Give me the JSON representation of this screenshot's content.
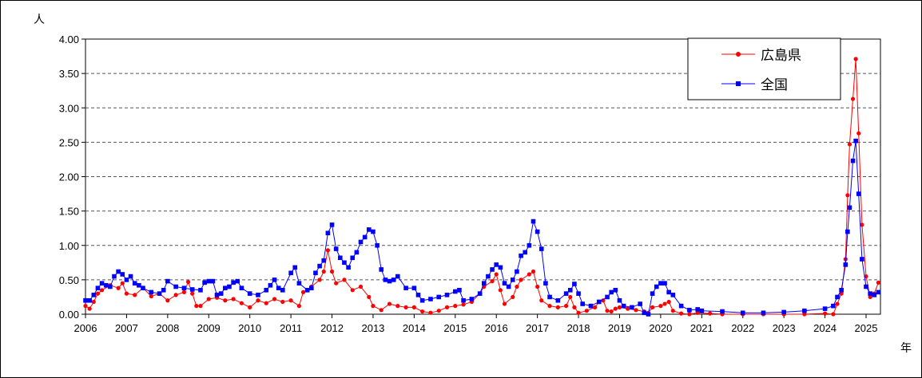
{
  "chart_data": {
    "type": "line",
    "y_unit_label": "人",
    "x_unit_label": "年",
    "ylim": [
      0,
      4
    ],
    "y_ticks": [
      "0.00",
      "0.50",
      "1.00",
      "1.50",
      "2.00",
      "2.50",
      "3.00",
      "3.50",
      "4.00"
    ],
    "x_ticks": [
      "2006",
      "2007",
      "2008",
      "2009",
      "2010",
      "2011",
      "2012",
      "2013",
      "2014",
      "2015",
      "2016",
      "2017",
      "2018",
      "2019",
      "2020",
      "2021",
      "2022",
      "2023",
      "2024",
      "2025"
    ],
    "x_range_years": [
      2006,
      2025.35
    ],
    "grid": "horizontal dashed",
    "legend_position": "top-right",
    "series": [
      {
        "name": "広島県",
        "color": "#ff0000",
        "marker": "circle",
        "points": [
          [
            2006.0,
            0.12
          ],
          [
            2006.1,
            0.08
          ],
          [
            2006.2,
            0.18
          ],
          [
            2006.3,
            0.3
          ],
          [
            2006.4,
            0.35
          ],
          [
            2006.6,
            0.42
          ],
          [
            2006.8,
            0.38
          ],
          [
            2006.9,
            0.45
          ],
          [
            2007.0,
            0.3
          ],
          [
            2007.2,
            0.28
          ],
          [
            2007.4,
            0.38
          ],
          [
            2007.6,
            0.26
          ],
          [
            2007.8,
            0.3
          ],
          [
            2008.0,
            0.2
          ],
          [
            2008.2,
            0.28
          ],
          [
            2008.4,
            0.32
          ],
          [
            2008.5,
            0.47
          ],
          [
            2008.6,
            0.3
          ],
          [
            2008.7,
            0.12
          ],
          [
            2008.8,
            0.12
          ],
          [
            2009.0,
            0.22
          ],
          [
            2009.2,
            0.24
          ],
          [
            2009.4,
            0.2
          ],
          [
            2009.6,
            0.22
          ],
          [
            2009.8,
            0.16
          ],
          [
            2010.0,
            0.1
          ],
          [
            2010.2,
            0.2
          ],
          [
            2010.4,
            0.16
          ],
          [
            2010.6,
            0.22
          ],
          [
            2010.8,
            0.18
          ],
          [
            2011.0,
            0.2
          ],
          [
            2011.2,
            0.12
          ],
          [
            2011.3,
            0.32
          ],
          [
            2011.5,
            0.4
          ],
          [
            2011.7,
            0.5
          ],
          [
            2011.8,
            0.62
          ],
          [
            2011.9,
            0.93
          ],
          [
            2012.0,
            0.62
          ],
          [
            2012.1,
            0.45
          ],
          [
            2012.3,
            0.5
          ],
          [
            2012.5,
            0.35
          ],
          [
            2012.7,
            0.4
          ],
          [
            2012.9,
            0.25
          ],
          [
            2013.0,
            0.12
          ],
          [
            2013.2,
            0.06
          ],
          [
            2013.4,
            0.15
          ],
          [
            2013.6,
            0.12
          ],
          [
            2013.8,
            0.1
          ],
          [
            2014.0,
            0.1
          ],
          [
            2014.2,
            0.04
          ],
          [
            2014.4,
            0.02
          ],
          [
            2014.6,
            0.05
          ],
          [
            2014.8,
            0.1
          ],
          [
            2015.0,
            0.12
          ],
          [
            2015.2,
            0.14
          ],
          [
            2015.4,
            0.18
          ],
          [
            2015.6,
            0.3
          ],
          [
            2015.7,
            0.4
          ],
          [
            2015.9,
            0.48
          ],
          [
            2016.0,
            0.58
          ],
          [
            2016.1,
            0.35
          ],
          [
            2016.2,
            0.15
          ],
          [
            2016.4,
            0.25
          ],
          [
            2016.5,
            0.4
          ],
          [
            2016.6,
            0.5
          ],
          [
            2016.8,
            0.58
          ],
          [
            2016.9,
            0.62
          ],
          [
            2017.0,
            0.4
          ],
          [
            2017.1,
            0.2
          ],
          [
            2017.3,
            0.12
          ],
          [
            2017.5,
            0.1
          ],
          [
            2017.7,
            0.12
          ],
          [
            2017.8,
            0.25
          ],
          [
            2017.9,
            0.1
          ],
          [
            2018.0,
            0.02
          ],
          [
            2018.2,
            0.05
          ],
          [
            2018.4,
            0.1
          ],
          [
            2018.5,
            0.18
          ],
          [
            2018.6,
            0.2
          ],
          [
            2018.7,
            0.05
          ],
          [
            2018.8,
            0.04
          ],
          [
            2018.9,
            0.08
          ],
          [
            2019.0,
            0.1
          ],
          [
            2019.2,
            0.08
          ],
          [
            2019.4,
            0.06
          ],
          [
            2019.6,
            0.04
          ],
          [
            2019.7,
            0.02
          ],
          [
            2019.8,
            0.1
          ],
          [
            2020.0,
            0.12
          ],
          [
            2020.1,
            0.15
          ],
          [
            2020.2,
            0.18
          ],
          [
            2020.3,
            0.05
          ],
          [
            2020.5,
            0.01
          ],
          [
            2020.7,
            0.0
          ],
          [
            2020.9,
            0.02
          ],
          [
            2021.2,
            0.01
          ],
          [
            2021.5,
            0.0
          ],
          [
            2022.0,
            0.0
          ],
          [
            2022.5,
            0.0
          ],
          [
            2023.0,
            0.0
          ],
          [
            2023.5,
            0.0
          ],
          [
            2024.0,
            0.01
          ],
          [
            2024.2,
            0.0
          ],
          [
            2024.3,
            0.15
          ],
          [
            2024.4,
            0.3
          ],
          [
            2024.5,
            0.8
          ],
          [
            2024.55,
            1.73
          ],
          [
            2024.6,
            2.47
          ],
          [
            2024.68,
            3.13
          ],
          [
            2024.75,
            3.71
          ],
          [
            2024.82,
            2.63
          ],
          [
            2024.9,
            1.3
          ],
          [
            2025.0,
            0.55
          ],
          [
            2025.1,
            0.25
          ],
          [
            2025.2,
            0.3
          ],
          [
            2025.3,
            0.46
          ]
        ]
      },
      {
        "name": "全国",
        "color": "#0000ff",
        "marker": "square",
        "points": [
          [
            2006.0,
            0.2
          ],
          [
            2006.1,
            0.2
          ],
          [
            2006.2,
            0.28
          ],
          [
            2006.3,
            0.38
          ],
          [
            2006.4,
            0.45
          ],
          [
            2006.5,
            0.42
          ],
          [
            2006.6,
            0.4
          ],
          [
            2006.7,
            0.55
          ],
          [
            2006.8,
            0.62
          ],
          [
            2006.9,
            0.58
          ],
          [
            2007.0,
            0.5
          ],
          [
            2007.1,
            0.55
          ],
          [
            2007.2,
            0.45
          ],
          [
            2007.3,
            0.42
          ],
          [
            2007.4,
            0.38
          ],
          [
            2007.6,
            0.32
          ],
          [
            2007.8,
            0.3
          ],
          [
            2007.9,
            0.35
          ],
          [
            2008.0,
            0.48
          ],
          [
            2008.2,
            0.4
          ],
          [
            2008.4,
            0.38
          ],
          [
            2008.6,
            0.36
          ],
          [
            2008.8,
            0.35
          ],
          [
            2008.9,
            0.46
          ],
          [
            2009.0,
            0.48
          ],
          [
            2009.1,
            0.48
          ],
          [
            2009.2,
            0.28
          ],
          [
            2009.3,
            0.3
          ],
          [
            2009.4,
            0.38
          ],
          [
            2009.5,
            0.4
          ],
          [
            2009.6,
            0.46
          ],
          [
            2009.7,
            0.48
          ],
          [
            2009.8,
            0.38
          ],
          [
            2010.0,
            0.3
          ],
          [
            2010.2,
            0.28
          ],
          [
            2010.4,
            0.35
          ],
          [
            2010.5,
            0.42
          ],
          [
            2010.6,
            0.5
          ],
          [
            2010.7,
            0.38
          ],
          [
            2010.8,
            0.35
          ],
          [
            2011.0,
            0.6
          ],
          [
            2011.1,
            0.68
          ],
          [
            2011.2,
            0.45
          ],
          [
            2011.4,
            0.35
          ],
          [
            2011.5,
            0.38
          ],
          [
            2011.6,
            0.6
          ],
          [
            2011.7,
            0.7
          ],
          [
            2011.8,
            0.78
          ],
          [
            2011.9,
            1.18
          ],
          [
            2012.0,
            1.3
          ],
          [
            2012.1,
            0.95
          ],
          [
            2012.2,
            0.82
          ],
          [
            2012.3,
            0.75
          ],
          [
            2012.4,
            0.68
          ],
          [
            2012.5,
            0.82
          ],
          [
            2012.6,
            0.9
          ],
          [
            2012.7,
            1.05
          ],
          [
            2012.8,
            1.12
          ],
          [
            2012.9,
            1.23
          ],
          [
            2013.0,
            1.2
          ],
          [
            2013.1,
            1.0
          ],
          [
            2013.2,
            0.65
          ],
          [
            2013.3,
            0.5
          ],
          [
            2013.4,
            0.48
          ],
          [
            2013.5,
            0.5
          ],
          [
            2013.6,
            0.55
          ],
          [
            2013.8,
            0.38
          ],
          [
            2014.0,
            0.38
          ],
          [
            2014.1,
            0.28
          ],
          [
            2014.2,
            0.2
          ],
          [
            2014.4,
            0.22
          ],
          [
            2014.6,
            0.25
          ],
          [
            2014.8,
            0.28
          ],
          [
            2015.0,
            0.33
          ],
          [
            2015.1,
            0.35
          ],
          [
            2015.2,
            0.2
          ],
          [
            2015.4,
            0.22
          ],
          [
            2015.6,
            0.3
          ],
          [
            2015.7,
            0.45
          ],
          [
            2015.8,
            0.55
          ],
          [
            2015.9,
            0.65
          ],
          [
            2016.0,
            0.72
          ],
          [
            2016.1,
            0.68
          ],
          [
            2016.2,
            0.45
          ],
          [
            2016.3,
            0.4
          ],
          [
            2016.4,
            0.5
          ],
          [
            2016.5,
            0.62
          ],
          [
            2016.6,
            0.85
          ],
          [
            2016.7,
            0.9
          ],
          [
            2016.8,
            1.0
          ],
          [
            2016.9,
            1.35
          ],
          [
            2017.0,
            1.2
          ],
          [
            2017.1,
            0.95
          ],
          [
            2017.2,
            0.45
          ],
          [
            2017.3,
            0.25
          ],
          [
            2017.5,
            0.2
          ],
          [
            2017.7,
            0.3
          ],
          [
            2017.8,
            0.35
          ],
          [
            2017.9,
            0.44
          ],
          [
            2018.0,
            0.3
          ],
          [
            2018.1,
            0.15
          ],
          [
            2018.3,
            0.12
          ],
          [
            2018.5,
            0.18
          ],
          [
            2018.7,
            0.25
          ],
          [
            2018.8,
            0.32
          ],
          [
            2018.9,
            0.35
          ],
          [
            2019.0,
            0.2
          ],
          [
            2019.1,
            0.12
          ],
          [
            2019.3,
            0.1
          ],
          [
            2019.5,
            0.15
          ],
          [
            2019.6,
            0.02
          ],
          [
            2019.7,
            0.0
          ],
          [
            2019.8,
            0.3
          ],
          [
            2019.9,
            0.4
          ],
          [
            2020.0,
            0.45
          ],
          [
            2020.1,
            0.45
          ],
          [
            2020.2,
            0.32
          ],
          [
            2020.3,
            0.28
          ],
          [
            2020.5,
            0.12
          ],
          [
            2020.7,
            0.06
          ],
          [
            2020.9,
            0.07
          ],
          [
            2021.0,
            0.05
          ],
          [
            2021.5,
            0.04
          ],
          [
            2022.0,
            0.02
          ],
          [
            2022.5,
            0.02
          ],
          [
            2023.0,
            0.03
          ],
          [
            2023.5,
            0.05
          ],
          [
            2024.0,
            0.08
          ],
          [
            2024.2,
            0.12
          ],
          [
            2024.3,
            0.25
          ],
          [
            2024.4,
            0.35
          ],
          [
            2024.5,
            0.72
          ],
          [
            2024.55,
            1.2
          ],
          [
            2024.6,
            1.55
          ],
          [
            2024.68,
            2.23
          ],
          [
            2024.75,
            2.52
          ],
          [
            2024.82,
            1.75
          ],
          [
            2024.9,
            0.8
          ],
          [
            2025.0,
            0.4
          ],
          [
            2025.1,
            0.3
          ],
          [
            2025.2,
            0.28
          ],
          [
            2025.3,
            0.32
          ]
        ]
      }
    ]
  }
}
